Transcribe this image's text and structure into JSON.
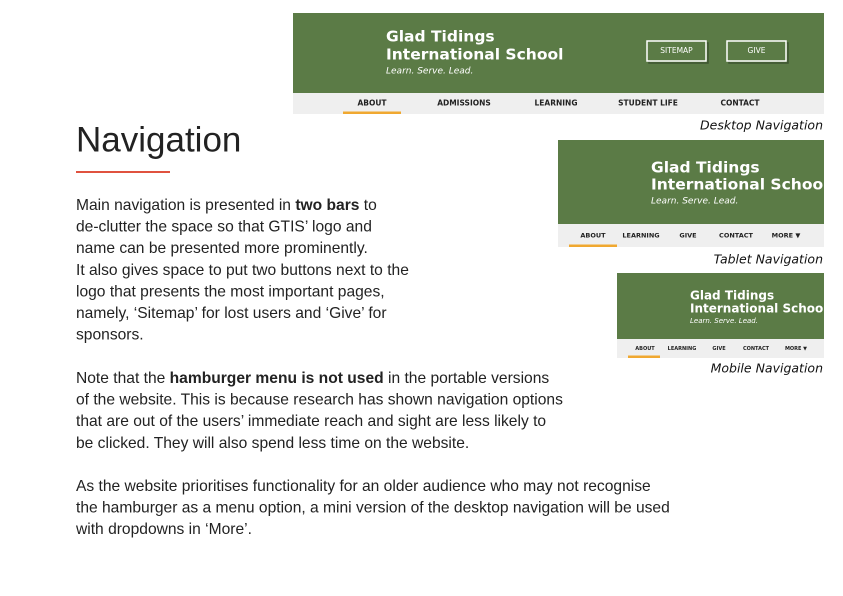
{
  "heading": "Navigation",
  "mockups": [
    {
      "caption": "Desktop Navigation",
      "title_line1": "Glad Tidings",
      "title_line2": "International School",
      "tagline": "Learn. Serve. Lead.",
      "buttons": [
        "SITEMAP",
        "GIVE"
      ],
      "nav": [
        "ABOUT",
        "ADMISSIONS",
        "LEARNING",
        "STUDENT LIFE",
        "CONTACT"
      ]
    },
    {
      "caption": "Tablet Navigation",
      "title_line1": "Glad Tidings",
      "title_line2": "International School",
      "tagline": "Learn. Serve. Lead.",
      "nav": [
        "ABOUT",
        "LEARNING",
        "GIVE",
        "CONTACT",
        "MORE ▼"
      ]
    },
    {
      "caption": "Mobile Navigation",
      "title_line1": "Glad Tidings",
      "title_line2": "International School",
      "tagline": "Learn. Serve. Lead.",
      "nav": [
        "ABOUT",
        "LEARNING",
        "GIVE",
        "CONTACT",
        "MORE ▼"
      ]
    }
  ],
  "paragraphs": [
    [
      [
        {
          "text": "Main navigation is presented in "
        },
        {
          "text": "two bars",
          "bold": true
        },
        {
          "text": " to"
        }
      ],
      [
        {
          "text": "de-clutter the space so that GTIS’ logo and"
        }
      ],
      [
        {
          "text": "name can be presented more prominently."
        }
      ],
      [
        {
          "text": "It also gives space to put two buttons next to the"
        }
      ],
      [
        {
          "text": "logo that presents the most important pages,"
        }
      ],
      [
        {
          "text": "namely, ‘Sitemap’ for lost users and ‘Give’ for"
        }
      ],
      [
        {
          "text": "sponsors."
        }
      ]
    ],
    [
      [
        {
          "text": "Note that the "
        },
        {
          "text": "hamburger menu is not used",
          "bold": true
        },
        {
          "text": " in the portable versions"
        }
      ],
      [
        {
          "text": "of the website. This is because research has shown navigation options"
        }
      ],
      [
        {
          "text": "that are out of the users’ immediate reach and sight are less likely to"
        }
      ],
      [
        {
          "text": "be clicked. They will also spend less time on the website."
        }
      ]
    ],
    [
      [
        {
          "text": "As the website prioritises functionality for an older audience who may not recognise"
        }
      ],
      [
        {
          "text": "the hamburger as a menu option, a mini version of the desktop navigation will be used"
        }
      ],
      [
        {
          "text": "with dropdowns in ‘More’."
        }
      ]
    ]
  ]
}
